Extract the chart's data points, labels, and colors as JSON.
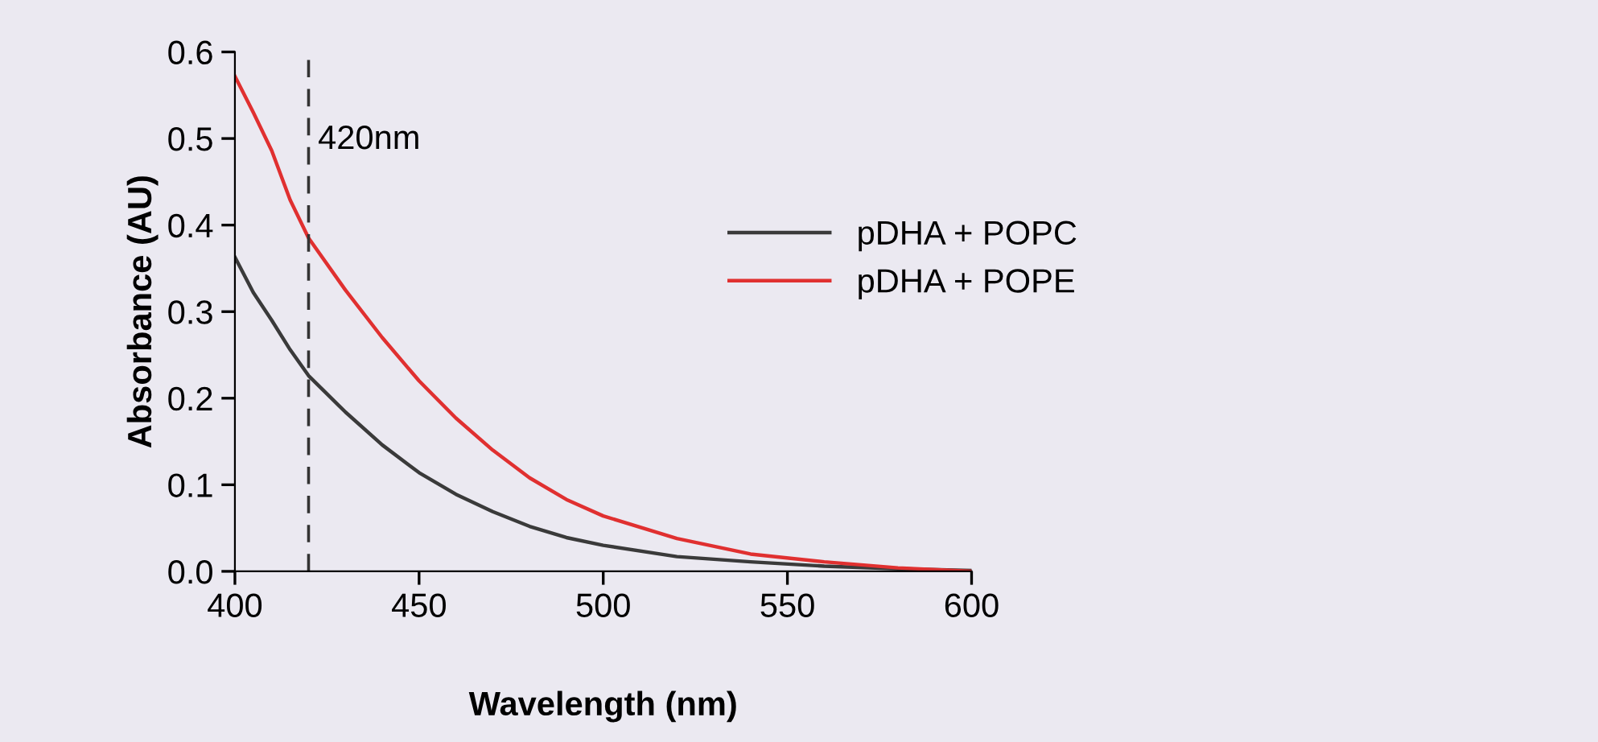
{
  "chart_data": {
    "type": "line",
    "xlabel": "Wavelength (nm)",
    "ylabel": "Absorbance (AU)",
    "x": [
      400,
      405,
      410,
      415,
      420,
      430,
      440,
      450,
      460,
      470,
      480,
      490,
      500,
      520,
      540,
      560,
      580,
      600
    ],
    "series": [
      {
        "name": "pDHA + POPC",
        "color": "#3a3a3a",
        "values": [
          0.363,
          0.322,
          0.29,
          0.256,
          0.226,
          0.184,
          0.146,
          0.114,
          0.089,
          0.069,
          0.052,
          0.039,
          0.03,
          0.017,
          0.011,
          0.006,
          0.003,
          0.001
        ]
      },
      {
        "name": "pDHA + POPE",
        "color": "#e03030",
        "values": [
          0.572,
          0.53,
          0.486,
          0.429,
          0.385,
          0.325,
          0.27,
          0.22,
          0.177,
          0.14,
          0.108,
          0.083,
          0.064,
          0.038,
          0.02,
          0.011,
          0.004,
          0.0
        ]
      }
    ],
    "xlim": [
      400,
      600
    ],
    "xticks": [
      400,
      450,
      500,
      550,
      600
    ],
    "ylim": [
      0,
      0.6
    ],
    "yticks": [
      {
        "value": 0,
        "label": "0.0"
      },
      {
        "value": 0.1,
        "label": "0.1"
      },
      {
        "value": 0.2,
        "label": "0.2"
      },
      {
        "value": 0.3,
        "label": "0.3"
      },
      {
        "value": 0.4,
        "label": "0.4"
      },
      {
        "value": 0.5,
        "label": "0.5"
      },
      {
        "value": 0.6,
        "label": "0.6"
      }
    ],
    "ref_lines": [
      {
        "axis": "x",
        "value": 420,
        "label": "420nm",
        "color": "#333333",
        "line_style": "dashed"
      }
    ],
    "grid": false,
    "legend": "right",
    "marker": "none",
    "line_style": "solid"
  }
}
